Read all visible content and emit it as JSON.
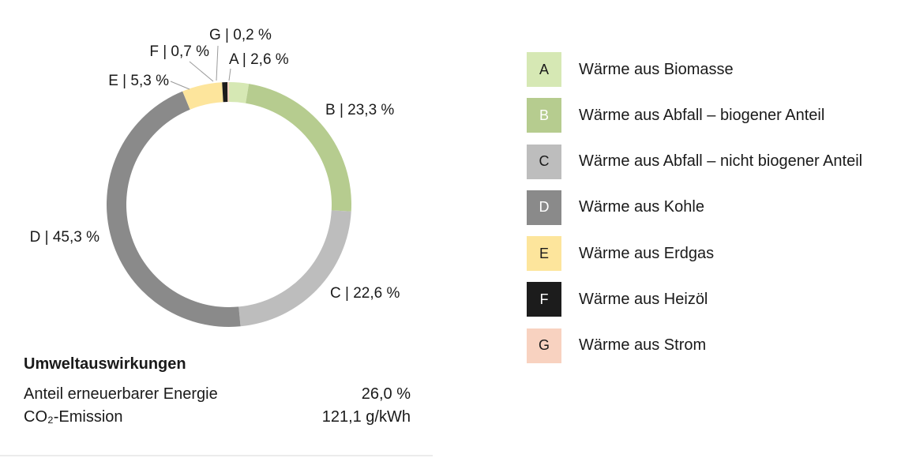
{
  "chart_data": {
    "type": "pie",
    "donut": true,
    "categories": [
      "A",
      "B",
      "C",
      "D",
      "E",
      "F",
      "G"
    ],
    "values": [
      2.6,
      23.3,
      22.6,
      45.3,
      5.3,
      0.7,
      0.2
    ],
    "slice_labels": [
      "A | 2,6 %",
      "B | 23,3 %",
      "C | 22,6 %",
      "D | 45,3 %",
      "E | 5,3 %",
      "F | 0,7 %",
      "G | 0,2 %"
    ],
    "colors": [
      "#d6e8b4",
      "#b6cc8f",
      "#bdbdbd",
      "#8a8a8a",
      "#fde59c",
      "#1c1c1c",
      "#f8d2c0"
    ],
    "legend": [
      {
        "key": "A",
        "label": "Wärme aus Biomasse"
      },
      {
        "key": "B",
        "label": "Wärme aus Abfall – biogener Anteil"
      },
      {
        "key": "C",
        "label": "Wärme aus Abfall – nicht biogener Anteil"
      },
      {
        "key": "D",
        "label": "Wärme aus Kohle"
      },
      {
        "key": "E",
        "label": "Wärme aus Erdgas"
      },
      {
        "key": "F",
        "label": "Wärme aus Heizöl"
      },
      {
        "key": "G",
        "label": "Wärme aus Strom"
      }
    ],
    "legend_placement": "right"
  },
  "impact": {
    "title": "Umweltauswirkungen",
    "rows": [
      {
        "label": "Anteil erneuerbarer Energie",
        "value": "26,0 %"
      },
      {
        "label": "CO₂-Emission",
        "value": "121,1 g/kWh"
      }
    ]
  }
}
